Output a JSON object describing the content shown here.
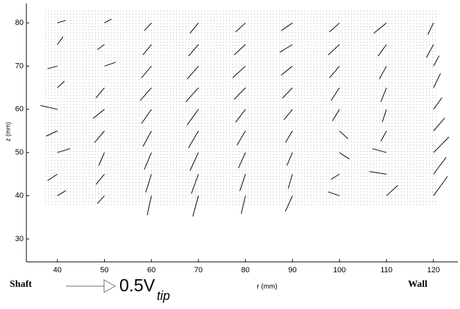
{
  "chart_data": {
    "type": "quiver",
    "ylabel": "z (mm)",
    "xlabel": "r (mm)",
    "left_label": "Shaft",
    "right_label": "Wall",
    "reference_label": "0.5V",
    "reference_subscript": "tip",
    "color": "#000000",
    "xlim": [
      33.4,
      125.2
    ],
    "ylim": [
      24.7,
      84.5
    ],
    "xticks": [
      40,
      50,
      60,
      70,
      80,
      90,
      100,
      110,
      120
    ],
    "yticks": [
      30,
      40,
      50,
      60,
      70,
      80
    ],
    "x": [
      40,
      50,
      60,
      70,
      80,
      90,
      100,
      110,
      120,
      40,
      50,
      60,
      70,
      80,
      90,
      100,
      110,
      120,
      40,
      50,
      60,
      70,
      80,
      90,
      100,
      110,
      120,
      40,
      50,
      60,
      70,
      80,
      90,
      100,
      110,
      120,
      40,
      50,
      60,
      70,
      80,
      90,
      100,
      110,
      120,
      40,
      50,
      60,
      70,
      80,
      90,
      100,
      110,
      120,
      40,
      50,
      60,
      70,
      80,
      90,
      100,
      110,
      120,
      40,
      50,
      60,
      70,
      80,
      90,
      100,
      110,
      120,
      40,
      50,
      60,
      70,
      80,
      90,
      100,
      110,
      120
    ],
    "y": [
      40,
      40,
      40,
      40,
      40,
      40,
      40,
      40,
      40,
      45,
      45,
      45,
      45,
      45,
      45,
      45,
      45,
      45,
      50,
      50,
      50,
      50,
      50,
      50,
      50,
      50,
      50,
      55,
      55,
      55,
      55,
      55,
      55,
      55,
      55,
      55,
      60,
      60,
      60,
      60,
      60,
      60,
      60,
      60,
      60,
      65,
      65,
      65,
      65,
      65,
      65,
      65,
      65,
      65,
      70,
      70,
      70,
      70,
      70,
      70,
      70,
      70,
      70,
      75,
      75,
      75,
      75,
      75,
      75,
      75,
      75,
      75,
      80,
      80,
      80,
      80,
      80,
      80,
      80,
      80,
      80
    ],
    "u": [
      0.6,
      -0.5,
      -0.3,
      -0.4,
      -0.3,
      -0.5,
      -0.8,
      0.8,
      1.0,
      -0.7,
      -0.6,
      -0.4,
      -0.5,
      -0.4,
      -0.3,
      -0.6,
      -1.2,
      0.9,
      0.9,
      -0.4,
      -0.5,
      -0.6,
      -0.5,
      -0.4,
      0.7,
      -1.0,
      1.1,
      -0.8,
      -0.7,
      -0.6,
      -0.7,
      -0.6,
      -0.5,
      0.6,
      -0.4,
      0.8,
      -1.2,
      -0.8,
      -0.7,
      -0.8,
      -0.7,
      -0.6,
      -0.5,
      -0.3,
      0.6,
      0.5,
      -0.6,
      -0.8,
      -0.9,
      -0.8,
      -0.7,
      -0.6,
      -0.4,
      0.5,
      -0.7,
      0.8,
      -0.7,
      -0.8,
      -0.9,
      -0.8,
      -0.7,
      -0.5,
      0.4,
      0.4,
      -0.5,
      -0.6,
      -0.7,
      -0.8,
      -0.9,
      -0.8,
      -0.6,
      -0.5,
      0.6,
      0.5,
      -0.5,
      -0.6,
      -0.7,
      -0.8,
      -0.7,
      -0.9,
      -0.4
    ],
    "v": [
      0.4,
      -0.6,
      -1.5,
      -1.6,
      -1.4,
      -1.2,
      0.3,
      0.8,
      1.5,
      -0.5,
      -0.8,
      -1.4,
      -1.5,
      -1.3,
      -1.1,
      -0.4,
      0.2,
      1.3,
      0.3,
      -1.0,
      -1.3,
      -1.4,
      -1.2,
      -1.0,
      -0.5,
      0.3,
      1.2,
      -0.4,
      -0.9,
      -1.2,
      -1.3,
      -1.1,
      -0.9,
      -0.6,
      -0.8,
      1.0,
      0.3,
      -0.7,
      -1.1,
      -1.2,
      -1.0,
      -0.8,
      -0.9,
      -1.0,
      0.9,
      0.5,
      -0.8,
      -1.0,
      -1.1,
      -0.9,
      -0.8,
      -1.0,
      -1.1,
      1.1,
      -0.2,
      0.3,
      -0.9,
      -1.0,
      -0.9,
      -0.7,
      -0.9,
      -1.0,
      0.8,
      0.6,
      -0.4,
      -0.8,
      -0.9,
      -0.8,
      -0.6,
      -0.8,
      -0.9,
      -1.0,
      0.2,
      0.3,
      -0.6,
      -0.8,
      -0.7,
      -0.6,
      -0.7,
      -0.8,
      -0.9
    ]
  }
}
